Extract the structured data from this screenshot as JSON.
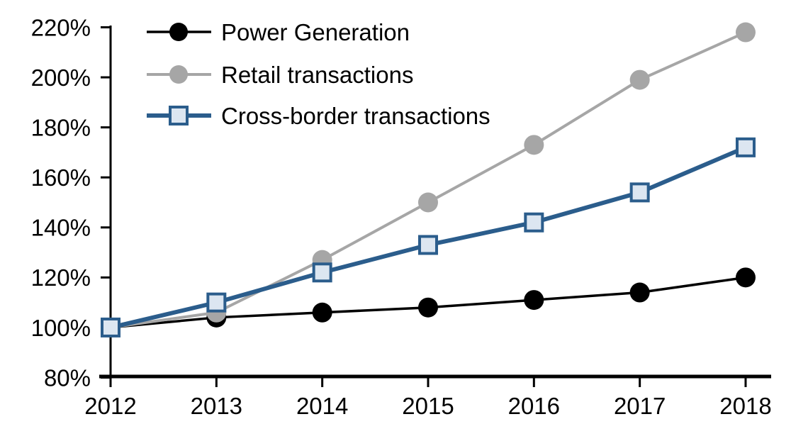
{
  "chart_data": {
    "type": "line",
    "title": "",
    "xlabel": "",
    "ylabel": "",
    "categories": [
      "2012",
      "2013",
      "2014",
      "2015",
      "2016",
      "2017",
      "2018"
    ],
    "series": [
      {
        "name": "Power Generation",
        "values": [
          100,
          104,
          106,
          108,
          111,
          114,
          120
        ],
        "color": "#000000",
        "marker": "circle",
        "marker_fill": "#000000",
        "line_width": 3.5
      },
      {
        "name": "Retail transactions",
        "values": [
          100,
          106,
          127,
          150,
          173,
          199,
          218
        ],
        "color": "#a6a6a6",
        "marker": "circle",
        "marker_fill": "#a6a6a6",
        "line_width": 4
      },
      {
        "name": "Cross-border transactions",
        "values": [
          100,
          110,
          122,
          133,
          142,
          154,
          172
        ],
        "color": "#2b5d8c",
        "marker": "square",
        "marker_fill": "#dce6f1",
        "line_width": 6
      }
    ],
    "ylim": [
      80,
      220
    ],
    "ytick_step": 20,
    "ytick_labels": [
      "80%",
      "100%",
      "120%",
      "140%",
      "160%",
      "180%",
      "200%",
      "220%"
    ],
    "yaxis_format": "percent",
    "grid": false,
    "legend_position": "top-left",
    "axis_color": "#000000",
    "background_color": "#ffffff"
  }
}
